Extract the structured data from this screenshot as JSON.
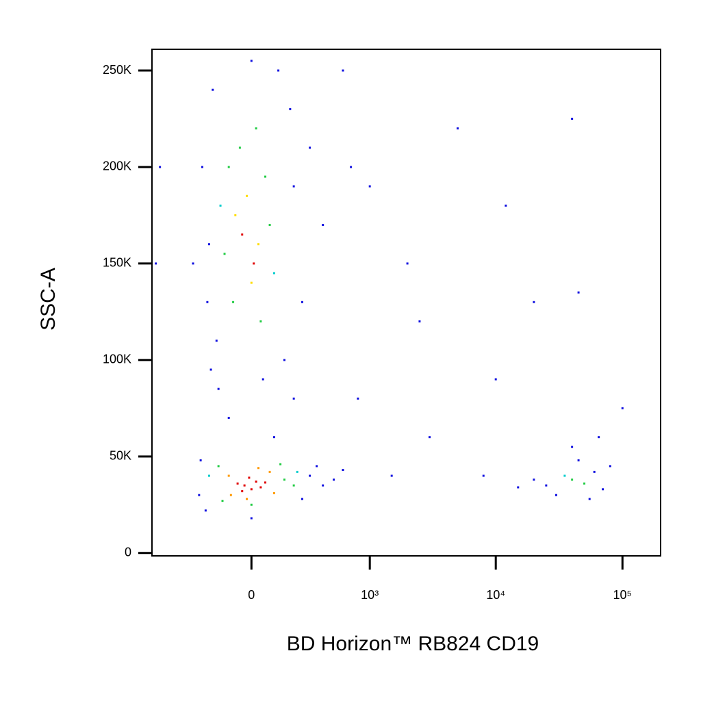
{
  "chart_data": {
    "type": "scatter",
    "xlabel": "BD Horizon™ RB824 CD19",
    "ylabel": "SSC-A",
    "xscale": "biexponential",
    "xlim": [
      -700,
      200000
    ],
    "xticks": [
      0,
      {
        "value": 1000,
        "label": "10³"
      },
      {
        "value": 10000,
        "label": "10⁴"
      },
      {
        "value": 100000,
        "label": "10⁵"
      }
    ],
    "ylim": [
      -1500,
      261000
    ],
    "yticks": [
      0,
      {
        "value": 50000,
        "label": "50K"
      },
      {
        "value": 100000,
        "label": "100K"
      },
      {
        "value": 150000,
        "label": "150K"
      },
      {
        "value": 200000,
        "label": "200K"
      },
      {
        "value": 250000,
        "label": "250K"
      }
    ],
    "x": [
      -30,
      0,
      20,
      -60,
      40,
      -10,
      60,
      -40,
      -100,
      80,
      100,
      -90,
      30,
      -20,
      -150,
      150,
      -130,
      130,
      0,
      200,
      -200,
      220,
      -250,
      300,
      -220,
      250,
      400,
      500,
      350,
      -260,
      0,
      600,
      -40,
      10,
      -70,
      30,
      0,
      -20,
      -100,
      60,
      -80,
      40,
      -50,
      80,
      -120,
      20,
      -140,
      100,
      -180,
      120,
      -160,
      150,
      -200,
      200,
      0,
      -150,
      50,
      -100,
      100,
      250,
      300,
      -240,
      180,
      -210,
      400,
      -300,
      -190,
      200,
      40000,
      50000,
      35000,
      25000,
      60000,
      45000,
      30000,
      70000,
      20000,
      55000,
      80000,
      40000,
      65000,
      15000,
      700,
      1000,
      2000,
      5000,
      12000,
      800,
      3000,
      10000,
      40000,
      45000,
      1500,
      8000,
      100000,
      600,
      2500,
      20000,
      -600,
      -650
    ],
    "y": [
      35000,
      33000,
      37000,
      36000,
      34000,
      39000,
      36500,
      32000,
      40000,
      42000,
      31000,
      30000,
      44000,
      28000,
      45000,
      38000,
      27000,
      46000,
      25000,
      35000,
      40000,
      42000,
      48000,
      40000,
      22000,
      28000,
      35000,
      38000,
      45000,
      30000,
      18000,
      43000,
      165000,
      150000,
      175000,
      160000,
      140000,
      185000,
      200000,
      195000,
      130000,
      120000,
      210000,
      170000,
      155000,
      220000,
      180000,
      145000,
      240000,
      250000,
      110000,
      100000,
      160000,
      190000,
      255000,
      85000,
      90000,
      70000,
      60000,
      130000,
      210000,
      200000,
      230000,
      130000,
      170000,
      150000,
      95000,
      80000,
      38000,
      36000,
      40000,
      35000,
      42000,
      48000,
      30000,
      33000,
      38000,
      28000,
      45000,
      55000,
      60000,
      34000,
      200000,
      190000,
      150000,
      220000,
      180000,
      80000,
      60000,
      90000,
      225000,
      135000,
      40000,
      40000,
      75000,
      250000,
      120000,
      130000,
      200000,
      150000
    ],
    "colors": [
      "#e00000",
      "#e00000",
      "#e00000",
      "#e00000",
      "#e00000",
      "#e00000",
      "#e00000",
      "#e00000",
      "#ff9900",
      "#ff9900",
      "#ff9900",
      "#ff9900",
      "#ff9900",
      "#ff9900",
      "#22cc44",
      "#22cc44",
      "#22cc44",
      "#22cc44",
      "#22cc44",
      "#22cc44",
      "#00cccc",
      "#00cccc",
      "#1010e0",
      "#1010e0",
      "#1010e0",
      "#1010e0",
      "#1010e0",
      "#1010e0",
      "#1010e0",
      "#1010e0",
      "#1010e0",
      "#1010e0",
      "#e00000",
      "#e00000",
      "#ffdd00",
      "#ffdd00",
      "#ffdd00",
      "#ffdd00",
      "#22cc44",
      "#22cc44",
      "#22cc44",
      "#22cc44",
      "#22cc44",
      "#22cc44",
      "#22cc44",
      "#22cc44",
      "#00cccc",
      "#00cccc",
      "#1010e0",
      "#1010e0",
      "#1010e0",
      "#1010e0",
      "#1010e0",
      "#1010e0",
      "#1010e0",
      "#1010e0",
      "#1010e0",
      "#1010e0",
      "#1010e0",
      "#1010e0",
      "#1010e0",
      "#1010e0",
      "#1010e0",
      "#1010e0",
      "#1010e0",
      "#1010e0",
      "#1010e0",
      "#1010e0",
      "#22cc44",
      "#22cc44",
      "#00cccc",
      "#1010e0",
      "#1010e0",
      "#1010e0",
      "#1010e0",
      "#1010e0",
      "#1010e0",
      "#1010e0",
      "#1010e0",
      "#1010e0",
      "#1010e0",
      "#1010e0",
      "#1010e0",
      "#1010e0",
      "#1010e0",
      "#1010e0",
      "#1010e0",
      "#1010e0",
      "#1010e0",
      "#1010e0",
      "#1010e0",
      "#1010e0",
      "#1010e0",
      "#1010e0",
      "#1010e0",
      "#1010e0",
      "#1010e0",
      "#1010e0",
      "#1010e0",
      "#1010e0"
    ]
  }
}
